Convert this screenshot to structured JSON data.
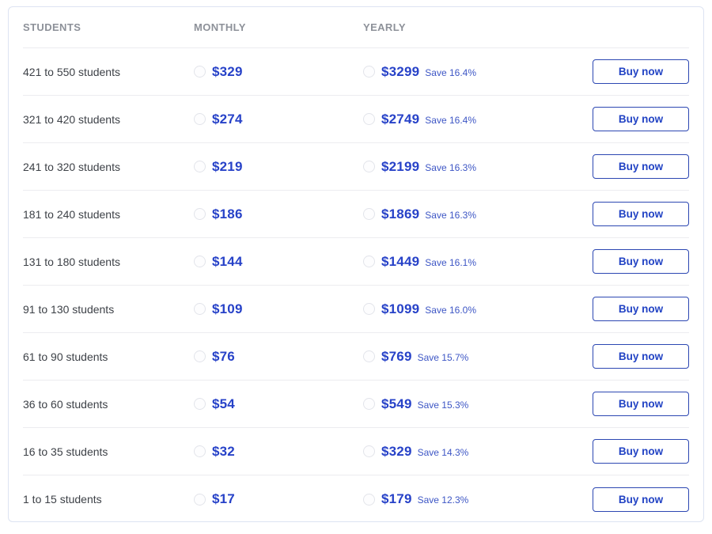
{
  "table": {
    "headers": {
      "students": "STUDENTS",
      "monthly": "MONTHLY",
      "yearly": "YEARLY"
    },
    "buy_label": "Buy now",
    "rows": [
      {
        "students": "421 to 550 students",
        "monthly": "$329",
        "yearly": "$3299",
        "save": "Save 16.4%"
      },
      {
        "students": "321 to 420 students",
        "monthly": "$274",
        "yearly": "$2749",
        "save": "Save 16.4%"
      },
      {
        "students": "241 to 320 students",
        "monthly": "$219",
        "yearly": "$2199",
        "save": "Save 16.3%"
      },
      {
        "students": "181 to 240 students",
        "monthly": "$186",
        "yearly": "$1869",
        "save": "Save 16.3%"
      },
      {
        "students": "131 to 180 students",
        "monthly": "$144",
        "yearly": "$1449",
        "save": "Save 16.1%"
      },
      {
        "students": "91 to 130 students",
        "monthly": "$109",
        "yearly": "$1099",
        "save": "Save 16.0%"
      },
      {
        "students": "61 to 90 students",
        "monthly": "$76",
        "yearly": "$769",
        "save": "Save 15.7%"
      },
      {
        "students": "36 to 60 students",
        "monthly": "$54",
        "yearly": "$549",
        "save": "Save 15.3%"
      },
      {
        "students": "16 to 35 students",
        "monthly": "$32",
        "yearly": "$329",
        "save": "Save 14.3%"
      },
      {
        "students": "1 to 15 students",
        "monthly": "$17",
        "yearly": "$179",
        "save": "Save 12.3%"
      }
    ],
    "colors": {
      "price_blue": "#2742c8",
      "save_blue": "#3d56c5",
      "button_border_blue": "#2c47b2",
      "button_text_blue": "#2243c4",
      "header_gray": "#8d9199",
      "label_dark": "#3d4147",
      "card_border": "#dde3f2",
      "divider": "#ececf0"
    }
  }
}
